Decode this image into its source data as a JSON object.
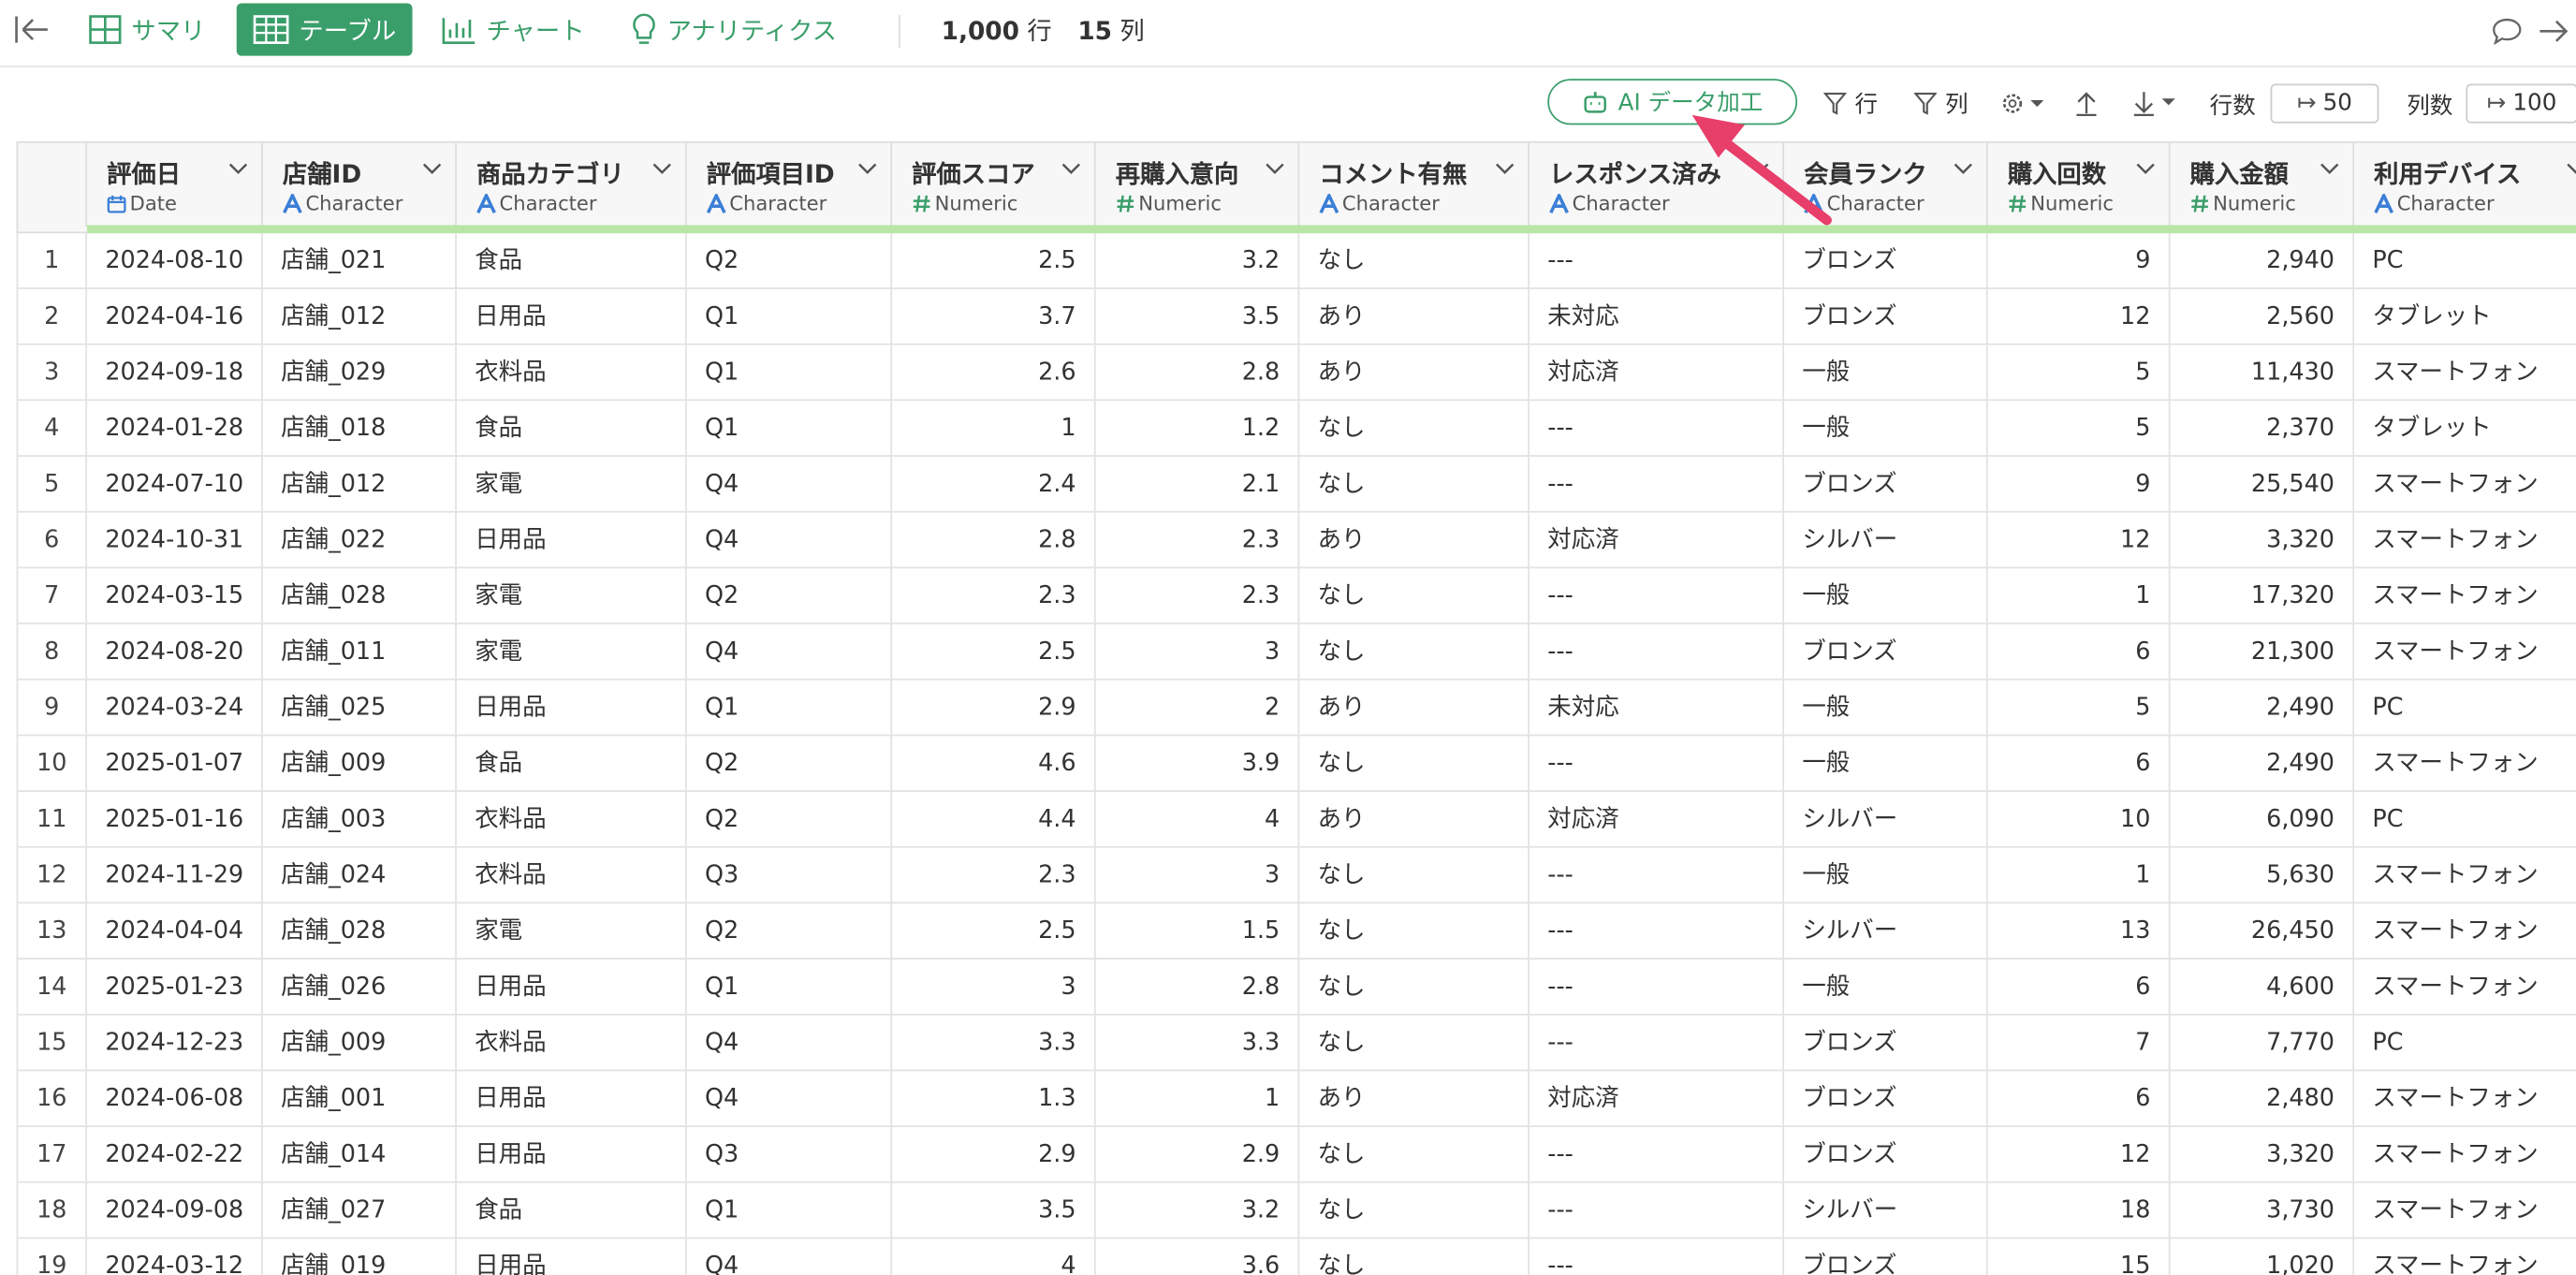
{
  "toolbar": {
    "tabs": [
      "サマリ",
      "テーブル",
      "チャート",
      "アナリティクス"
    ],
    "rows_count": "1,000",
    "rows_unit": "行",
    "cols_count": "15",
    "cols_unit": "列"
  },
  "subtoolbar": {
    "ai_button": "AI データ加工",
    "row_filter": "行",
    "col_filter": "列",
    "rows_label": "行数",
    "rows_value": "50",
    "cols_label": "列数",
    "cols_value": "100"
  },
  "table": {
    "columns": [
      {
        "name": "評価日",
        "type": "Date"
      },
      {
        "name": "店舗ID",
        "type": "Character"
      },
      {
        "name": "商品カテゴリ",
        "type": "Character"
      },
      {
        "name": "評価項目ID",
        "type": "Character"
      },
      {
        "name": "評価スコア",
        "type": "Numeric"
      },
      {
        "name": "再購入意向",
        "type": "Numeric"
      },
      {
        "name": "コメント有無",
        "type": "Character"
      },
      {
        "name": "レスポンス済み",
        "type": "Character"
      },
      {
        "name": "会員ランク",
        "type": "Character"
      },
      {
        "name": "購入回数",
        "type": "Numeric"
      },
      {
        "name": "購入金額",
        "type": "Numeric"
      },
      {
        "name": "利用デバイス",
        "type": "Character"
      }
    ],
    "rows": [
      [
        "1",
        "2024-08-10",
        "店舗_021",
        "食品",
        "Q2",
        "2.5",
        "3.2",
        "なし",
        "---",
        "ブロンズ",
        "9",
        "2,940",
        "PC"
      ],
      [
        "2",
        "2024-04-16",
        "店舗_012",
        "日用品",
        "Q1",
        "3.7",
        "3.5",
        "あり",
        "未対応",
        "ブロンズ",
        "12",
        "2,560",
        "タブレット"
      ],
      [
        "3",
        "2024-09-18",
        "店舗_029",
        "衣料品",
        "Q1",
        "2.6",
        "2.8",
        "あり",
        "対応済",
        "一般",
        "5",
        "11,430",
        "スマートフォン"
      ],
      [
        "4",
        "2024-01-28",
        "店舗_018",
        "食品",
        "Q1",
        "1",
        "1.2",
        "なし",
        "---",
        "一般",
        "5",
        "2,370",
        "タブレット"
      ],
      [
        "5",
        "2024-07-10",
        "店舗_012",
        "家電",
        "Q4",
        "2.4",
        "2.1",
        "なし",
        "---",
        "ブロンズ",
        "9",
        "25,540",
        "スマートフォン"
      ],
      [
        "6",
        "2024-10-31",
        "店舗_022",
        "日用品",
        "Q4",
        "2.8",
        "2.3",
        "あり",
        "対応済",
        "シルバー",
        "12",
        "3,320",
        "スマートフォン"
      ],
      [
        "7",
        "2024-03-15",
        "店舗_028",
        "家電",
        "Q2",
        "2.3",
        "2.3",
        "なし",
        "---",
        "一般",
        "1",
        "17,320",
        "スマートフォン"
      ],
      [
        "8",
        "2024-08-20",
        "店舗_011",
        "家電",
        "Q4",
        "2.5",
        "3",
        "なし",
        "---",
        "ブロンズ",
        "6",
        "21,300",
        "スマートフォン"
      ],
      [
        "9",
        "2024-03-24",
        "店舗_025",
        "日用品",
        "Q1",
        "2.9",
        "2",
        "あり",
        "未対応",
        "一般",
        "5",
        "2,490",
        "PC"
      ],
      [
        "10",
        "2025-01-07",
        "店舗_009",
        "食品",
        "Q2",
        "4.6",
        "3.9",
        "なし",
        "---",
        "一般",
        "6",
        "2,490",
        "スマートフォン"
      ],
      [
        "11",
        "2025-01-16",
        "店舗_003",
        "衣料品",
        "Q2",
        "4.4",
        "4",
        "あり",
        "対応済",
        "シルバー",
        "10",
        "6,090",
        "PC"
      ],
      [
        "12",
        "2024-11-29",
        "店舗_024",
        "衣料品",
        "Q3",
        "2.3",
        "3",
        "なし",
        "---",
        "一般",
        "1",
        "5,630",
        "スマートフォン"
      ],
      [
        "13",
        "2024-04-04",
        "店舗_028",
        "家電",
        "Q2",
        "2.5",
        "1.5",
        "なし",
        "---",
        "シルバー",
        "13",
        "26,450",
        "スマートフォン"
      ],
      [
        "14",
        "2025-01-23",
        "店舗_026",
        "日用品",
        "Q1",
        "3",
        "2.8",
        "なし",
        "---",
        "一般",
        "6",
        "4,600",
        "スマートフォン"
      ],
      [
        "15",
        "2024-12-23",
        "店舗_009",
        "衣料品",
        "Q4",
        "3.3",
        "3.3",
        "なし",
        "---",
        "ブロンズ",
        "7",
        "7,770",
        "PC"
      ],
      [
        "16",
        "2024-06-08",
        "店舗_001",
        "日用品",
        "Q4",
        "1.3",
        "1",
        "あり",
        "対応済",
        "ブロンズ",
        "6",
        "2,480",
        "スマートフォン"
      ],
      [
        "17",
        "2024-02-22",
        "店舗_014",
        "日用品",
        "Q3",
        "2.9",
        "2.9",
        "なし",
        "---",
        "ブロンズ",
        "12",
        "3,320",
        "スマートフォン"
      ],
      [
        "18",
        "2024-09-08",
        "店舗_027",
        "食品",
        "Q1",
        "3.5",
        "3.2",
        "なし",
        "---",
        "シルバー",
        "18",
        "3,730",
        "スマートフォン"
      ],
      [
        "19",
        "2024-03-12",
        "店舗_019",
        "日用品",
        "Q4",
        "4",
        "3.6",
        "なし",
        "---",
        "ブロンズ",
        "15",
        "1,020",
        "スマートフォン"
      ]
    ]
  }
}
